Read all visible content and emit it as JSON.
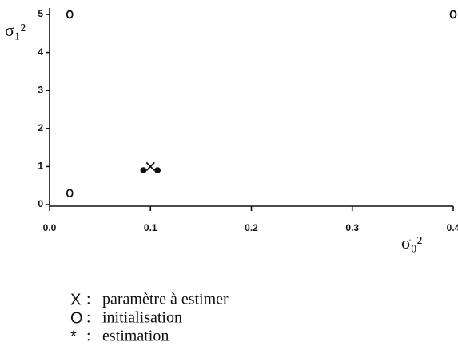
{
  "chart_data": {
    "type": "scatter",
    "xlabel": "σ₀²",
    "ylabel": "σ₁²",
    "xlim": [
      0,
      0.4
    ],
    "xticks": [
      {
        "value": 0,
        "label": "0.0"
      },
      0.1,
      0.2,
      0.3,
      0.4
    ],
    "ylim": [
      0,
      5
    ],
    "yticks": [
      0,
      1,
      2,
      3,
      4,
      5
    ],
    "series": [
      {
        "name": "paramètre à estimer",
        "marker": "X",
        "x": [
          0.1
        ],
        "values": [
          1.0
        ]
      },
      {
        "name": "initialisation",
        "marker": "O",
        "x": [
          0.02,
          0.4,
          0.02
        ],
        "values": [
          5.0,
          5.0,
          0.3
        ]
      },
      {
        "name": "estimation",
        "marker": "*",
        "x": [
          0.093,
          0.107
        ],
        "values": [
          0.9,
          0.9
        ]
      }
    ]
  }
}
